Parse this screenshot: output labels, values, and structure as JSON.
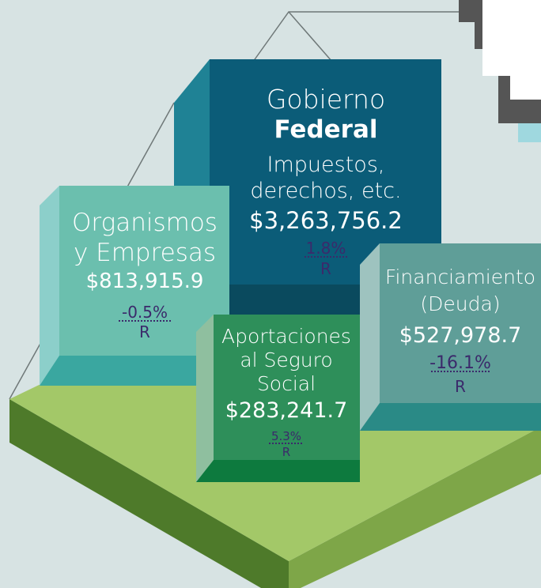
{
  "blocks": [
    {
      "lines": [
        "Gobierno",
        "Federal",
        "Impuestos,",
        "derechos, etc."
      ],
      "amount": "$3,263,756.2",
      "change": "1.8%",
      "flag": "R"
    },
    {
      "lines": [
        "Organismos",
        "y Empresas"
      ],
      "amount": "$813,915.9",
      "change": "-0.5%",
      "flag": "R"
    },
    {
      "lines": [
        "Aportaciones",
        "al Seguro",
        "Social"
      ],
      "amount": "$283,241.7",
      "change": "5.3%",
      "flag": "R"
    },
    {
      "lines": [
        "Financiamiento",
        "(Deuda)"
      ],
      "amount": "$527,978.7",
      "change": "-16.1%",
      "flag": "R"
    }
  ]
}
